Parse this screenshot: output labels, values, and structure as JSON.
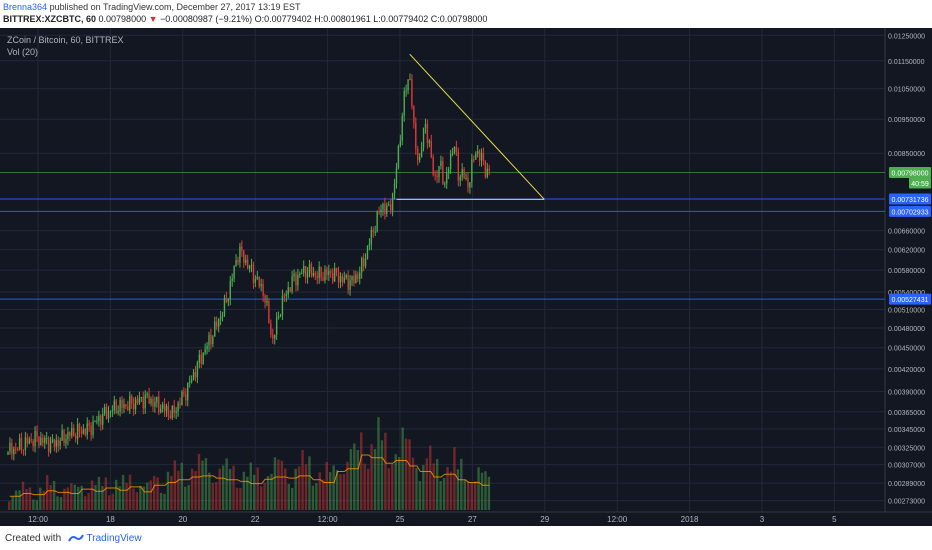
{
  "header": {
    "author": "Brenna364",
    "published_text": "published on TradingView.com, December 27, 2017 13:19 EST",
    "symbol": "BITTREX:XZCBTC, 60",
    "last": "0.00798000",
    "change": "−0.00080987 (−9.21%)",
    "ohlc": "O:0.00779402 H:0.00801961 L:0.00779402 C:0.00798000"
  },
  "legend": {
    "title": "ZCoin / Bitcoin, 60, BITTREX",
    "volume": "Vol (20)"
  },
  "footer": {
    "created_with": "Created with",
    "brand": "TradingView"
  },
  "colors": {
    "background": "#131722",
    "grid": "#232838",
    "up": "#4caf50",
    "down": "#e53935",
    "hline": "#2962ff",
    "trendline": "#e5e04a",
    "ma": "#ff9800"
  },
  "chart_data": {
    "type": "candlestick",
    "y_scale": "log",
    "ylim": [
      0.00263,
      0.0128
    ],
    "x_tick_labels": [
      "12:00",
      "18",
      "20",
      "22",
      "12:00",
      "25",
      "27",
      "29",
      "12:00",
      "2018",
      "3",
      "5"
    ],
    "y_tick_labels": [
      "0.01250000",
      "0.01150000",
      "0.01050000",
      "0.00950000",
      "0.00850000",
      "0.00660000",
      "0.00620000",
      "0.00580000",
      "0.00540000",
      "0.00510000",
      "0.00480000",
      "0.00450000",
      "0.00420000",
      "0.00390000",
      "0.00365000",
      "0.00345000",
      "0.00325000",
      "0.00307000",
      "0.00289000",
      "0.00273000"
    ],
    "y_ticks": [
      0.0125,
      0.0115,
      0.0105,
      0.0095,
      0.0085,
      0.0066,
      0.0062,
      0.0058,
      0.0054,
      0.0051,
      0.0048,
      0.0045,
      0.0042,
      0.0039,
      0.00365,
      0.00345,
      0.00325,
      0.00307,
      0.00289,
      0.00273
    ],
    "price_labels": [
      {
        "text": "0.00798000",
        "value": 0.00798,
        "color": "#4caf50"
      },
      {
        "text": "40:59",
        "value": 0.00771,
        "color": "#4caf50"
      },
      {
        "text": "0.00731736",
        "value": 0.00731736,
        "color": "#2962ff"
      },
      {
        "text": "0.00702933",
        "value": 0.00702933,
        "color": "#2962ff"
      },
      {
        "text": "0.00527431",
        "value": 0.00527431,
        "color": "#2962ff"
      }
    ],
    "horizontal_lines": [
      0.00798,
      0.00731736,
      0.00702933,
      0.00527431
    ],
    "trendline_upper": [
      [
        0.463,
        0.01175
      ],
      [
        0.615,
        0.00731
      ]
    ],
    "trendline_lower": [
      [
        0.448,
        0.00731
      ],
      [
        0.615,
        0.00731
      ]
    ],
    "price_path": [
      [
        0.0,
        0.00317
      ],
      [
        0.02,
        0.00325
      ],
      [
        0.04,
        0.00335
      ],
      [
        0.06,
        0.00328
      ],
      [
        0.08,
        0.0034
      ],
      [
        0.1,
        0.00345
      ],
      [
        0.115,
        0.0036
      ],
      [
        0.13,
        0.0037
      ],
      [
        0.15,
        0.00375
      ],
      [
        0.165,
        0.00382
      ],
      [
        0.18,
        0.00372
      ],
      [
        0.195,
        0.00362
      ],
      [
        0.21,
        0.0039
      ],
      [
        0.225,
        0.0043
      ],
      [
        0.24,
        0.0047
      ],
      [
        0.255,
        0.0052
      ],
      [
        0.27,
        0.0062
      ],
      [
        0.285,
        0.00575
      ],
      [
        0.298,
        0.0054
      ],
      [
        0.308,
        0.0046
      ],
      [
        0.318,
        0.0052
      ],
      [
        0.33,
        0.0056
      ],
      [
        0.345,
        0.0058
      ],
      [
        0.36,
        0.0057
      ],
      [
        0.375,
        0.00575
      ],
      [
        0.39,
        0.0056
      ],
      [
        0.4,
        0.0056
      ],
      [
        0.41,
        0.0059
      ],
      [
        0.418,
        0.0064
      ],
      [
        0.425,
        0.0068
      ],
      [
        0.432,
        0.0072
      ],
      [
        0.438,
        0.007
      ],
      [
        0.445,
        0.0075
      ],
      [
        0.452,
        0.009
      ],
      [
        0.458,
        0.0105
      ],
      [
        0.463,
        0.011
      ],
      [
        0.468,
        0.009
      ],
      [
        0.474,
        0.0082
      ],
      [
        0.48,
        0.0095
      ],
      [
        0.486,
        0.0085
      ],
      [
        0.492,
        0.0078
      ],
      [
        0.498,
        0.0082
      ],
      [
        0.503,
        0.0076
      ],
      [
        0.508,
        0.0083
      ],
      [
        0.513,
        0.0088
      ],
      [
        0.518,
        0.0079
      ],
      [
        0.523,
        0.008
      ],
      [
        0.528,
        0.0076
      ],
      [
        0.533,
        0.0081
      ],
      [
        0.538,
        0.0086
      ],
      [
        0.545,
        0.0083
      ],
      [
        0.55,
        0.008
      ],
      [
        0.555,
        0.00798
      ]
    ],
    "volume_level": [
      0.25,
      0.3,
      0.28,
      0.35,
      0.32,
      0.3,
      0.38,
      0.34,
      0.4,
      0.36,
      0.42,
      0.33,
      0.45,
      0.5,
      0.55,
      0.6,
      0.62,
      0.58,
      0.55,
      0.52,
      0.48,
      0.56,
      0.6,
      0.58,
      0.62,
      0.55,
      0.5,
      0.7,
      0.75,
      1.0,
      0.95,
      0.85,
      0.9,
      0.8,
      0.7,
      0.6,
      0.65,
      0.55,
      0.5,
      0.45
    ]
  }
}
